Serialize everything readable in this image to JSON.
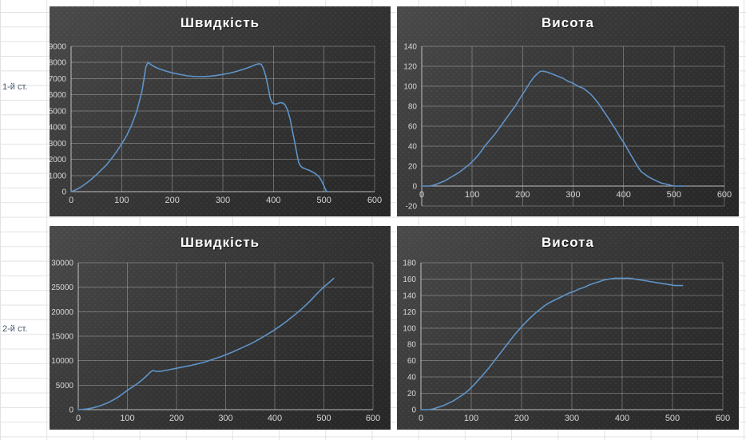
{
  "spreadsheet": {
    "background": "#ffffff",
    "grid_color": "#e2e2e2",
    "label_color": "#44546A",
    "row_labels": [
      {
        "text": "1-й ст."
      },
      {
        "text": "2-й ст."
      }
    ]
  },
  "chart_style": {
    "bg_start": "#4a4a4a",
    "bg_end": "#262626",
    "gridline_color": "rgba(255,255,255,0.28)",
    "axis_color": "rgba(255,255,255,0.55)",
    "tick_color": "#d6d6d6",
    "title_color": "#ffffff",
    "line_color": "#5f94c8"
  },
  "chart_data": [
    {
      "id": "stage1-speed",
      "type": "line",
      "title": "Швидкість",
      "xlabel": "",
      "ylabel": "",
      "grid": true,
      "legend": "none",
      "xlim": [
        0,
        600
      ],
      "ylim": [
        0,
        9000
      ],
      "xticks": [
        0,
        100,
        200,
        300,
        400,
        500,
        600
      ],
      "yticks": [
        0,
        1000,
        2000,
        3000,
        4000,
        5000,
        6000,
        7000,
        8000,
        9000
      ],
      "points": [
        [
          0,
          0
        ],
        [
          10,
          120
        ],
        [
          20,
          300
        ],
        [
          30,
          520
        ],
        [
          40,
          760
        ],
        [
          50,
          1050
        ],
        [
          60,
          1350
        ],
        [
          70,
          1650
        ],
        [
          80,
          2050
        ],
        [
          90,
          2480
        ],
        [
          100,
          2950
        ],
        [
          110,
          3480
        ],
        [
          120,
          4150
        ],
        [
          130,
          5000
        ],
        [
          140,
          6200
        ],
        [
          148,
          7750
        ],
        [
          152,
          8000
        ],
        [
          160,
          7820
        ],
        [
          170,
          7660
        ],
        [
          180,
          7540
        ],
        [
          190,
          7440
        ],
        [
          200,
          7360
        ],
        [
          215,
          7260
        ],
        [
          230,
          7170
        ],
        [
          245,
          7130
        ],
        [
          260,
          7120
        ],
        [
          275,
          7150
        ],
        [
          290,
          7210
        ],
        [
          305,
          7290
        ],
        [
          320,
          7390
        ],
        [
          335,
          7520
        ],
        [
          350,
          7680
        ],
        [
          365,
          7870
        ],
        [
          372,
          7920
        ],
        [
          376,
          7880
        ],
        [
          380,
          7650
        ],
        [
          385,
          7150
        ],
        [
          390,
          6400
        ],
        [
          394,
          5750
        ],
        [
          398,
          5480
        ],
        [
          403,
          5420
        ],
        [
          408,
          5450
        ],
        [
          413,
          5510
        ],
        [
          418,
          5500
        ],
        [
          423,
          5380
        ],
        [
          428,
          5050
        ],
        [
          433,
          4500
        ],
        [
          438,
          3700
        ],
        [
          443,
          2900
        ],
        [
          447,
          2250
        ],
        [
          450,
          1800
        ],
        [
          454,
          1580
        ],
        [
          458,
          1480
        ],
        [
          464,
          1400
        ],
        [
          470,
          1330
        ],
        [
          476,
          1240
        ],
        [
          482,
          1130
        ],
        [
          487,
          1010
        ],
        [
          491,
          880
        ],
        [
          495,
          680
        ],
        [
          499,
          420
        ],
        [
          503,
          120
        ],
        [
          506,
          0
        ],
        [
          510,
          0
        ]
      ]
    },
    {
      "id": "stage1-height",
      "type": "line",
      "title": "Висота",
      "xlabel": "",
      "ylabel": "",
      "grid": true,
      "legend": "none",
      "xlim": [
        0,
        600
      ],
      "ylim": [
        -20,
        140
      ],
      "xticks": [
        0,
        100,
        200,
        300,
        400,
        500,
        600
      ],
      "yticks": [
        -20,
        0,
        20,
        40,
        60,
        80,
        100,
        120,
        140
      ],
      "points": [
        [
          0,
          0
        ],
        [
          15,
          0
        ],
        [
          25,
          1
        ],
        [
          35,
          3
        ],
        [
          45,
          5
        ],
        [
          55,
          8
        ],
        [
          65,
          11
        ],
        [
          75,
          14
        ],
        [
          85,
          18
        ],
        [
          95,
          22
        ],
        [
          105,
          27
        ],
        [
          112,
          31
        ],
        [
          118,
          35
        ],
        [
          125,
          40
        ],
        [
          135,
          46
        ],
        [
          145,
          52
        ],
        [
          155,
          59
        ],
        [
          165,
          66
        ],
        [
          175,
          73
        ],
        [
          185,
          80
        ],
        [
          195,
          88
        ],
        [
          205,
          96
        ],
        [
          215,
          104
        ],
        [
          222,
          109
        ],
        [
          228,
          112
        ],
        [
          235,
          115
        ],
        [
          242,
          115
        ],
        [
          250,
          114
        ],
        [
          260,
          112
        ],
        [
          270,
          110
        ],
        [
          280,
          108
        ],
        [
          290,
          105
        ],
        [
          300,
          103
        ],
        [
          310,
          100
        ],
        [
          320,
          98
        ],
        [
          328,
          95
        ],
        [
          335,
          92
        ],
        [
          342,
          88
        ],
        [
          350,
          83
        ],
        [
          358,
          77
        ],
        [
          366,
          71
        ],
        [
          375,
          64
        ],
        [
          384,
          57
        ],
        [
          392,
          50
        ],
        [
          400,
          44
        ],
        [
          408,
          37
        ],
        [
          416,
          30
        ],
        [
          424,
          23
        ],
        [
          430,
          18
        ],
        [
          436,
          14
        ],
        [
          442,
          12
        ],
        [
          450,
          9
        ],
        [
          458,
          7
        ],
        [
          466,
          5
        ],
        [
          475,
          3
        ],
        [
          484,
          2
        ],
        [
          492,
          1
        ],
        [
          500,
          0
        ],
        [
          510,
          0
        ],
        [
          520,
          0
        ]
      ]
    },
    {
      "id": "stage2-speed",
      "type": "line",
      "title": "Швидкість",
      "xlabel": "",
      "ylabel": "",
      "grid": true,
      "legend": "none",
      "xlim": [
        0,
        600
      ],
      "ylim": [
        0,
        30000
      ],
      "xticks": [
        0,
        100,
        200,
        300,
        400,
        500,
        600
      ],
      "yticks": [
        0,
        5000,
        10000,
        15000,
        20000,
        25000,
        30000
      ],
      "points": [
        [
          0,
          0
        ],
        [
          10,
          60
        ],
        [
          20,
          180
        ],
        [
          30,
          380
        ],
        [
          40,
          650
        ],
        [
          50,
          1000
        ],
        [
          60,
          1400
        ],
        [
          70,
          1900
        ],
        [
          80,
          2500
        ],
        [
          90,
          3200
        ],
        [
          100,
          3950
        ],
        [
          110,
          4600
        ],
        [
          120,
          5300
        ],
        [
          130,
          6100
        ],
        [
          140,
          7000
        ],
        [
          147,
          7700
        ],
        [
          152,
          8000
        ],
        [
          158,
          7820
        ],
        [
          164,
          7800
        ],
        [
          172,
          7900
        ],
        [
          180,
          8050
        ],
        [
          190,
          8250
        ],
        [
          200,
          8450
        ],
        [
          215,
          8750
        ],
        [
          230,
          9050
        ],
        [
          245,
          9400
        ],
        [
          260,
          9800
        ],
        [
          275,
          10300
        ],
        [
          290,
          10800
        ],
        [
          300,
          11200
        ],
        [
          315,
          11800
        ],
        [
          330,
          12500
        ],
        [
          350,
          13400
        ],
        [
          365,
          14200
        ],
        [
          380,
          15100
        ],
        [
          395,
          16000
        ],
        [
          410,
          17000
        ],
        [
          425,
          18100
        ],
        [
          440,
          19300
        ],
        [
          455,
          20600
        ],
        [
          470,
          22000
        ],
        [
          485,
          23600
        ],
        [
          500,
          25100
        ],
        [
          510,
          25900
        ],
        [
          520,
          26800
        ]
      ]
    },
    {
      "id": "stage2-height",
      "type": "line",
      "title": "Висота",
      "xlabel": "",
      "ylabel": "",
      "grid": true,
      "legend": "none",
      "xlim": [
        0,
        600
      ],
      "ylim": [
        0,
        180
      ],
      "xticks": [
        0,
        100,
        200,
        300,
        400,
        500,
        600
      ],
      "yticks": [
        0,
        20,
        40,
        60,
        80,
        100,
        120,
        140,
        160,
        180
      ],
      "points": [
        [
          0,
          0
        ],
        [
          15,
          0
        ],
        [
          25,
          1
        ],
        [
          35,
          3
        ],
        [
          45,
          5
        ],
        [
          55,
          8
        ],
        [
          65,
          11
        ],
        [
          75,
          15
        ],
        [
          85,
          19
        ],
        [
          95,
          24
        ],
        [
          105,
          30
        ],
        [
          115,
          37
        ],
        [
          125,
          44
        ],
        [
          135,
          51
        ],
        [
          145,
          59
        ],
        [
          155,
          67
        ],
        [
          165,
          75
        ],
        [
          175,
          83
        ],
        [
          185,
          91
        ],
        [
          195,
          98
        ],
        [
          205,
          105
        ],
        [
          215,
          111
        ],
        [
          225,
          117
        ],
        [
          235,
          122
        ],
        [
          245,
          127
        ],
        [
          255,
          131
        ],
        [
          265,
          134
        ],
        [
          275,
          137
        ],
        [
          285,
          140
        ],
        [
          295,
          143
        ],
        [
          305,
          145
        ],
        [
          315,
          148
        ],
        [
          325,
          150
        ],
        [
          335,
          153
        ],
        [
          345,
          155
        ],
        [
          355,
          157
        ],
        [
          365,
          159
        ],
        [
          375,
          160
        ],
        [
          385,
          161
        ],
        [
          395,
          161
        ],
        [
          405,
          161
        ],
        [
          415,
          161
        ],
        [
          425,
          160
        ],
        [
          435,
          159
        ],
        [
          445,
          158
        ],
        [
          455,
          157
        ],
        [
          465,
          156
        ],
        [
          475,
          155
        ],
        [
          485,
          154
        ],
        [
          495,
          153
        ],
        [
          505,
          152
        ],
        [
          520,
          152
        ]
      ]
    }
  ]
}
